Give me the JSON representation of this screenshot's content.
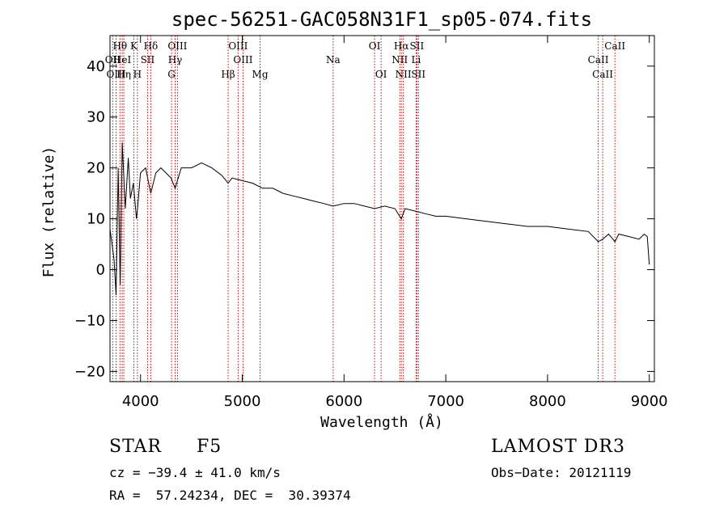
{
  "chart_data": {
    "type": "line",
    "title": "spec-56251-GAC058N31F1_sp05-074.fits",
    "xlabel": "Wavelength (Å)",
    "ylabel": "Flux (relative)",
    "xlim": [
      3700,
      9050
    ],
    "ylim": [
      -22,
      46
    ],
    "xticks": [
      4000,
      5000,
      6000,
      7000,
      8000,
      9000
    ],
    "yticks": [
      -20,
      -10,
      0,
      10,
      20,
      30,
      40
    ],
    "ytick_labels": [
      "−20",
      "−10",
      "0",
      "10",
      "20",
      "30",
      "40"
    ],
    "series": [
      {
        "name": "flux",
        "x": [
          3700,
          3740,
          3760,
          3780,
          3800,
          3820,
          3850,
          3880,
          3900,
          3930,
          3960,
          3970,
          4000,
          4050,
          4101,
          4150,
          4200,
          4250,
          4300,
          4340,
          4400,
          4500,
          4600,
          4700,
          4800,
          4861,
          4900,
          5000,
          5100,
          5200,
          5300,
          5400,
          5500,
          5600,
          5700,
          5800,
          5893,
          6000,
          6100,
          6200,
          6300,
          6400,
          6500,
          6563,
          6600,
          6700,
          6800,
          6900,
          7000,
          7200,
          7400,
          7600,
          7800,
          8000,
          8200,
          8400,
          8498,
          8542,
          8600,
          8662,
          8700,
          8800,
          8900,
          8950,
          8980,
          9000
        ],
        "y": [
          8,
          2,
          -5,
          20,
          -3,
          25,
          12,
          22,
          14,
          17,
          10,
          12,
          19,
          20,
          15,
          19,
          20,
          19,
          18,
          16,
          20,
          20,
          21,
          20,
          18.5,
          17,
          18,
          17.5,
          17,
          16,
          16,
          15,
          14.5,
          14,
          13.5,
          13,
          12.5,
          13,
          13,
          12.5,
          12,
          12.5,
          12,
          10,
          12,
          11.5,
          11,
          10.5,
          10.5,
          10,
          9.5,
          9,
          8.5,
          8.5,
          8,
          7.5,
          5.5,
          6,
          7,
          5.5,
          7,
          6.5,
          6,
          7,
          6.5,
          1
        ]
      }
    ],
    "lines": [
      {
        "label": "Hθ",
        "x": 3798,
        "row": 0
      },
      {
        "label": "OII",
        "x": 3727,
        "row": 1
      },
      {
        "label": "OIII",
        "x": 3760,
        "row": 2
      },
      {
        "label": "HeI",
        "x": 3820,
        "row": 1
      },
      {
        "label": "Hη",
        "x": 3836,
        "row": 2
      },
      {
        "label": "K",
        "x": 3934,
        "row": 0
      },
      {
        "label": "SII",
        "x": 4069,
        "row": 1
      },
      {
        "label": "H",
        "x": 3969,
        "row": 2
      },
      {
        "label": "Hδ",
        "x": 4101,
        "row": 0
      },
      {
        "label": "OIII",
        "x": 4363,
        "row": 0
      },
      {
        "label": "Hγ",
        "x": 4340,
        "row": 1
      },
      {
        "label": "G",
        "x": 4305,
        "row": 2
      },
      {
        "label": "OIII",
        "x": 4959,
        "row": 0
      },
      {
        "label": "OIII",
        "x": 5007,
        "row": 1
      },
      {
        "label": "Hβ",
        "x": 4861,
        "row": 2
      },
      {
        "label": "Mg",
        "x": 5175,
        "row": 2
      },
      {
        "label": "Na",
        "x": 5893,
        "row": 1
      },
      {
        "label": "OI",
        "x": 6300,
        "row": 0
      },
      {
        "label": "OI",
        "x": 6364,
        "row": 2
      },
      {
        "label": "Hα",
        "x": 6563,
        "row": 0
      },
      {
        "label": "NII",
        "x": 6548,
        "row": 1
      },
      {
        "label": "NII",
        "x": 6583,
        "row": 2
      },
      {
        "label": "SII",
        "x": 6716,
        "row": 0
      },
      {
        "label": "Li",
        "x": 6708,
        "row": 1
      },
      {
        "label": "SII",
        "x": 6731,
        "row": 2
      },
      {
        "label": "CaII",
        "x": 8662,
        "row": 0
      },
      {
        "label": "CaII",
        "x": 8498,
        "row": 1
      },
      {
        "label": "CaII",
        "x": 8542,
        "row": 2
      }
    ],
    "annotations": {
      "object_class": "STAR",
      "subclass": "F5",
      "redshift_text": "cz = −39.4 ± 41.0 km/s",
      "coords_text": "RA =  57.24234, DEC =  30.39374",
      "survey": "LAMOST DR3",
      "obs_date_text": "Obs−Date: 20121119"
    },
    "grid": false,
    "legend": "none"
  },
  "colors": {
    "spectrum": "#000000",
    "line_marker": "#cc0000",
    "axes": "#000000",
    "background": "#ffffff"
  }
}
